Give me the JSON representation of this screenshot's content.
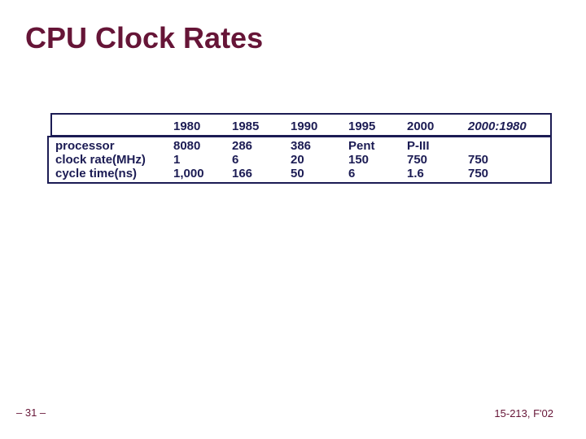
{
  "title": "CPU Clock Rates",
  "colors": {
    "accent_maroon": "#661537",
    "table_navy": "#1C1C54",
    "background": "#ffffff"
  },
  "table": {
    "header": [
      "1980",
      "1985",
      "1990",
      "1995",
      "2000",
      "2000:1980"
    ],
    "rows": [
      {
        "label": "processor",
        "cells": [
          "8080",
          "286",
          "386",
          "Pent",
          "P-III",
          ""
        ]
      },
      {
        "label": "clock rate(MHz)",
        "cells": [
          "1",
          "6",
          "20",
          "150",
          "750",
          "750"
        ]
      },
      {
        "label": "cycle time(ns)",
        "cells": [
          "1,000",
          "166",
          "50",
          "6",
          "1.6",
          "750"
        ]
      }
    ]
  },
  "footer": {
    "left": "– 31 –",
    "right": "15-213, F'02"
  }
}
